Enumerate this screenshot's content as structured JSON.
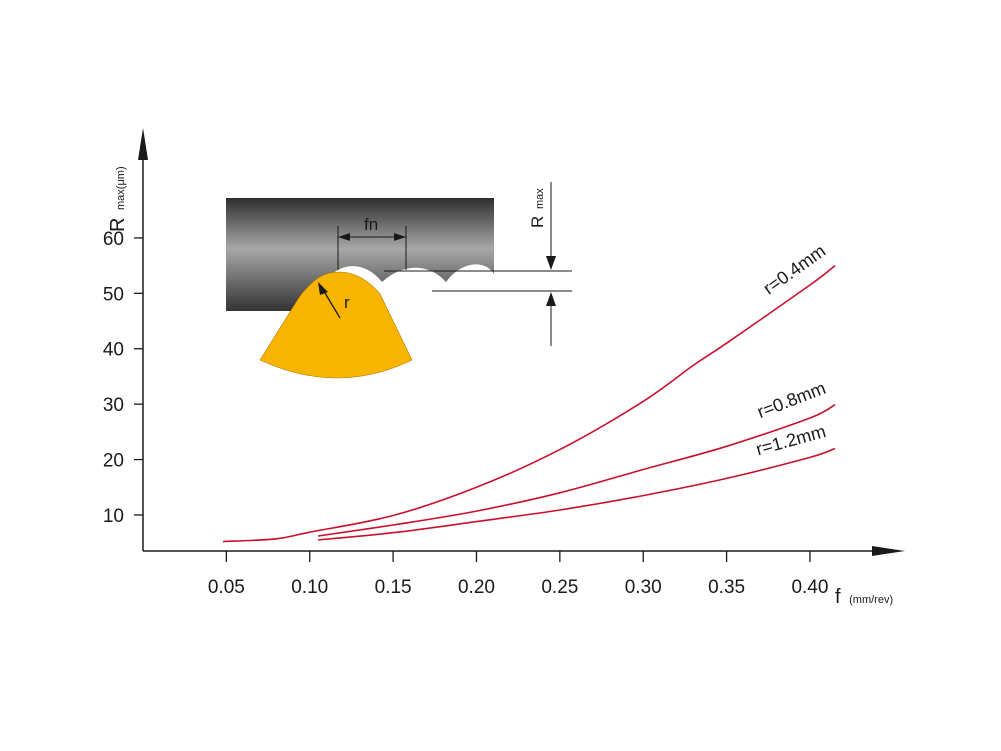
{
  "chart_data": {
    "type": "line",
    "title": "",
    "xlabel": "f",
    "xlabel_unit": "(mm/rev)",
    "ylabel": "R",
    "ylabel_sub": "max(μm)",
    "xlim": [
      0.0,
      0.46
    ],
    "ylim": [
      3.5,
      82
    ],
    "x_ticks": [
      0.05,
      0.1,
      0.15,
      0.2,
      0.25,
      0.3,
      0.35,
      0.4
    ],
    "x_tick_labels": [
      "0.05",
      "0.10",
      "0.15",
      "0.20",
      "0.25",
      "0.30",
      "0.35",
      "0.40"
    ],
    "y_ticks": [
      10,
      20,
      30,
      40,
      50,
      60
    ],
    "y_tick_labels": [
      "10",
      "20",
      "30",
      "40",
      "50",
      "60"
    ],
    "grid": false,
    "series": [
      {
        "name": "r=0.4mm",
        "color": "#c8102e",
        "x": [
          0.048,
          0.08,
          0.1,
          0.15,
          0.2,
          0.25,
          0.3,
          0.33,
          0.35,
          0.4,
          0.415
        ],
        "y": [
          5.2,
          5.7,
          6.9,
          9.9,
          15.0,
          21.8,
          30.5,
          37.0,
          41.0,
          51.5,
          55.0
        ]
      },
      {
        "name": "r=0.8mm",
        "color": "#c8102e",
        "x": [
          0.105,
          0.15,
          0.2,
          0.25,
          0.3,
          0.35,
          0.4,
          0.415
        ],
        "y": [
          6.2,
          8.2,
          10.7,
          14.0,
          18.2,
          22.4,
          27.5,
          29.9
        ]
      },
      {
        "name": "r=1.2mm",
        "color": "#c8102e",
        "x": [
          0.105,
          0.15,
          0.2,
          0.25,
          0.3,
          0.35,
          0.4,
          0.415
        ],
        "y": [
          5.5,
          6.8,
          8.8,
          10.9,
          13.5,
          16.6,
          20.4,
          22.0
        ]
      }
    ]
  },
  "inset": {
    "fn_label": "fn",
    "r_label": "r",
    "rmax_label": "R",
    "rmax_sub": "max",
    "tool_color": "#f7b500",
    "workpiece_color": "#4a4a4a"
  }
}
